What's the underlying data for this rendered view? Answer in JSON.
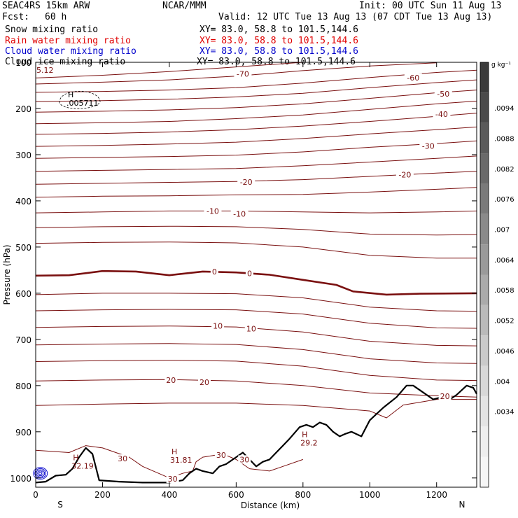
{
  "header": {
    "model": "SEAC4RS 15km ARW",
    "org": "NCAR/MMM",
    "init": "Init: 00 UTC Sun 11 Aug 13",
    "fcst_label": "Fcst:",
    "fcst_value": "60 h",
    "valid": "Valid: 12 UTC Tue 13 Aug 13 (07 CDT Tue 13 Aug 13)"
  },
  "fields": [
    {
      "name": "Snow mixing ratio",
      "xy": "XY=  83.0, 58.8 to 101.5,144.6",
      "color": "#000000"
    },
    {
      "name": "Rain water mixing ratio",
      "xy": "XY=  83.0, 58.8 to 101.5,144.6",
      "color": "#e00000"
    },
    {
      "name": "Cloud water mixing ratio",
      "xy": "XY=  83.0, 58.8 to 101.5,144.6",
      "color": "#0000cc"
    },
    {
      "name": "Cloud ice mixing ratio",
      "xy": "XY=  83.0, 58.8 to 101.5,144.6",
      "color": "#000000"
    }
  ],
  "chart_data": {
    "type": "line",
    "xlabel": "Distance (km)",
    "ylabel": "Pressure (hPa)",
    "xlim": [
      0,
      1320
    ],
    "ylim": [
      1020,
      100
    ],
    "x_ticks": [
      0,
      200,
      400,
      600,
      800,
      1000,
      1200
    ],
    "y_ticks": [
      100,
      200,
      300,
      400,
      500,
      600,
      700,
      800,
      900,
      1000
    ],
    "y_tick_labels": [
      "100",
      "200",
      "300",
      "400",
      "500",
      "600",
      "700",
      "800",
      "900",
      "1000"
    ],
    "x_start_label": "S",
    "x_end_label": "N",
    "contour_color": "#7a1010",
    "isotherms": [
      {
        "temp": -70,
        "points": [
          [
            0,
            134
          ],
          [
            200,
            128
          ],
          [
            400,
            120
          ],
          [
            600,
            110
          ],
          [
            800,
            100
          ]
        ]
      },
      {
        "temp": null,
        "points": [
          [
            0,
            147
          ],
          [
            200,
            143
          ],
          [
            400,
            138
          ],
          [
            600,
            130
          ],
          [
            800,
            118
          ],
          [
            1000,
            108
          ],
          [
            1200,
            101
          ]
        ]
      },
      {
        "temp": -60,
        "points": [
          [
            0,
            165
          ],
          [
            200,
            163
          ],
          [
            400,
            160
          ],
          [
            600,
            155
          ],
          [
            800,
            145
          ],
          [
            1000,
            133
          ],
          [
            1200,
            122
          ],
          [
            1320,
            117
          ]
        ]
      },
      {
        "temp": null,
        "points": [
          [
            0,
            185
          ],
          [
            200,
            183
          ],
          [
            400,
            180
          ],
          [
            600,
            175
          ],
          [
            800,
            167
          ],
          [
            1000,
            155
          ],
          [
            1200,
            144
          ],
          [
            1320,
            138
          ]
        ]
      },
      {
        "temp": -50,
        "points": [
          [
            0,
            208
          ],
          [
            200,
            206
          ],
          [
            400,
            203
          ],
          [
            600,
            198
          ],
          [
            800,
            190
          ],
          [
            1000,
            178
          ],
          [
            1200,
            166
          ],
          [
            1320,
            160
          ]
        ]
      },
      {
        "temp": null,
        "points": [
          [
            0,
            233
          ],
          [
            200,
            231
          ],
          [
            400,
            228
          ],
          [
            600,
            222
          ],
          [
            800,
            214
          ],
          [
            1000,
            202
          ],
          [
            1200,
            190
          ],
          [
            1320,
            184
          ]
        ]
      },
      {
        "temp": -40,
        "points": [
          [
            0,
            256
          ],
          [
            200,
            254
          ],
          [
            400,
            251
          ],
          [
            600,
            246
          ],
          [
            800,
            238
          ],
          [
            1000,
            228
          ],
          [
            1200,
            217
          ],
          [
            1320,
            210
          ]
        ]
      },
      {
        "temp": null,
        "points": [
          [
            0,
            282
          ],
          [
            200,
            280
          ],
          [
            400,
            277
          ],
          [
            600,
            273
          ],
          [
            800,
            265
          ],
          [
            1000,
            255
          ],
          [
            1200,
            246
          ],
          [
            1320,
            240
          ]
        ]
      },
      {
        "temp": -30,
        "points": [
          [
            0,
            308
          ],
          [
            200,
            306
          ],
          [
            400,
            304
          ],
          [
            600,
            301
          ],
          [
            800,
            294
          ],
          [
            1000,
            284
          ],
          [
            1200,
            276
          ],
          [
            1320,
            270
          ]
        ]
      },
      {
        "temp": null,
        "points": [
          [
            0,
            336
          ],
          [
            200,
            334
          ],
          [
            400,
            332
          ],
          [
            600,
            330
          ],
          [
            800,
            324
          ],
          [
            1000,
            316
          ],
          [
            1200,
            308
          ],
          [
            1320,
            303
          ]
        ]
      },
      {
        "temp": -20,
        "points": [
          [
            0,
            364
          ],
          [
            200,
            362
          ],
          [
            400,
            360
          ],
          [
            600,
            358
          ],
          [
            800,
            354
          ],
          [
            1000,
            347
          ],
          [
            1200,
            340
          ],
          [
            1320,
            336
          ]
        ]
      },
      {
        "temp": null,
        "points": [
          [
            0,
            392
          ],
          [
            200,
            390
          ],
          [
            400,
            389
          ],
          [
            600,
            387
          ],
          [
            800,
            386
          ],
          [
            1000,
            381
          ],
          [
            1200,
            375
          ],
          [
            1320,
            371
          ]
        ]
      },
      {
        "temp": -10,
        "points": [
          [
            0,
            426
          ],
          [
            200,
            424
          ],
          [
            400,
            422
          ],
          [
            600,
            422
          ],
          [
            800,
            424
          ],
          [
            1000,
            426
          ],
          [
            1200,
            424
          ],
          [
            1320,
            422
          ]
        ]
      },
      {
        "temp": null,
        "points": [
          [
            0,
            458
          ],
          [
            200,
            456
          ],
          [
            400,
            455
          ],
          [
            600,
            456
          ],
          [
            800,
            462
          ],
          [
            1000,
            472
          ],
          [
            1200,
            474
          ],
          [
            1320,
            473
          ]
        ]
      },
      {
        "temp": null,
        "points": [
          [
            0,
            492
          ],
          [
            200,
            490
          ],
          [
            400,
            489
          ],
          [
            600,
            491
          ],
          [
            800,
            500
          ],
          [
            1000,
            518
          ],
          [
            1200,
            524
          ],
          [
            1320,
            524
          ]
        ]
      },
      {
        "temp": 0,
        "bold": true,
        "points": [
          [
            0,
            562
          ],
          [
            100,
            561
          ],
          [
            200,
            552
          ],
          [
            300,
            553
          ],
          [
            400,
            561
          ],
          [
            500,
            553
          ],
          [
            600,
            555
          ],
          [
            700,
            560
          ],
          [
            800,
            571
          ],
          [
            900,
            582
          ],
          [
            950,
            596
          ],
          [
            1050,
            603
          ],
          [
            1150,
            601
          ],
          [
            1320,
            600
          ]
        ]
      },
      {
        "temp": null,
        "points": [
          [
            0,
            603
          ],
          [
            200,
            600
          ],
          [
            400,
            600
          ],
          [
            600,
            601
          ],
          [
            800,
            610
          ],
          [
            1000,
            630
          ],
          [
            1200,
            638
          ],
          [
            1320,
            639
          ]
        ]
      },
      {
        "temp": null,
        "points": [
          [
            0,
            638
          ],
          [
            200,
            636
          ],
          [
            400,
            635
          ],
          [
            600,
            636
          ],
          [
            800,
            645
          ],
          [
            1000,
            665
          ],
          [
            1200,
            675
          ],
          [
            1320,
            676
          ]
        ]
      },
      {
        "temp": 10,
        "points": [
          [
            0,
            674
          ],
          [
            200,
            672
          ],
          [
            400,
            671
          ],
          [
            600,
            673
          ],
          [
            800,
            684
          ],
          [
            1000,
            704
          ],
          [
            1200,
            713
          ],
          [
            1320,
            714
          ]
        ]
      },
      {
        "temp": null,
        "points": [
          [
            0,
            712
          ],
          [
            200,
            710
          ],
          [
            400,
            709
          ],
          [
            600,
            711
          ],
          [
            800,
            722
          ],
          [
            1000,
            742
          ],
          [
            1200,
            751
          ],
          [
            1320,
            752
          ]
        ]
      },
      {
        "temp": null,
        "points": [
          [
            0,
            748
          ],
          [
            200,
            746
          ],
          [
            400,
            745
          ],
          [
            600,
            747
          ],
          [
            800,
            758
          ],
          [
            1000,
            778
          ],
          [
            1200,
            788
          ],
          [
            1320,
            789
          ]
        ]
      },
      {
        "temp": 20,
        "points": [
          [
            0,
            790
          ],
          [
            200,
            788
          ],
          [
            400,
            787
          ],
          [
            600,
            790
          ],
          [
            800,
            800
          ],
          [
            1000,
            816
          ],
          [
            1200,
            822
          ],
          [
            1320,
            825
          ]
        ]
      },
      {
        "temp": null,
        "points": [
          [
            0,
            843
          ],
          [
            200,
            840
          ],
          [
            400,
            838
          ],
          [
            600,
            838
          ],
          [
            800,
            843
          ],
          [
            1000,
            855
          ],
          [
            1050,
            870
          ],
          [
            1100,
            842
          ],
          [
            1200,
            830
          ],
          [
            1320,
            830
          ]
        ]
      },
      {
        "temp": 30,
        "points": [
          [
            0,
            940
          ],
          [
            100,
            945
          ],
          [
            150,
            930
          ],
          [
            200,
            935
          ],
          [
            280,
            955
          ],
          [
            320,
            975
          ],
          [
            400,
            1000
          ],
          [
            440,
            990
          ],
          [
            470,
            985
          ],
          [
            480,
            965
          ],
          [
            500,
            955
          ],
          [
            560,
            948
          ],
          [
            600,
            960
          ],
          [
            640,
            980
          ],
          [
            700,
            985
          ],
          [
            740,
            975
          ],
          [
            800,
            960
          ]
        ]
      }
    ],
    "isotherm_labels": [
      {
        "x": 620,
        "p": 125,
        "text": "-70"
      },
      {
        "x": 1130,
        "p": 133,
        "text": "-60"
      },
      {
        "x": 1220,
        "p": 168,
        "text": "-50"
      },
      {
        "x": 1215,
        "p": 212,
        "text": "-40"
      },
      {
        "x": 1175,
        "p": 281,
        "text": "-30"
      },
      {
        "x": 630,
        "p": 359,
        "text": "-20"
      },
      {
        "x": 1105,
        "p": 343,
        "text": "-20"
      },
      {
        "x": 530,
        "p": 422,
        "text": "-10"
      },
      {
        "x": 610,
        "p": 428,
        "text": "-10"
      },
      {
        "x": 535,
        "p": 553,
        "text": "0"
      },
      {
        "x": 640,
        "p": 557,
        "text": "0"
      },
      {
        "x": 545,
        "p": 671,
        "text": "10"
      },
      {
        "x": 645,
        "p": 677,
        "text": "10"
      },
      {
        "x": 405,
        "p": 788,
        "text": "20"
      },
      {
        "x": 505,
        "p": 793,
        "text": "20"
      },
      {
        "x": 1225,
        "p": 823,
        "text": "20"
      },
      {
        "x": 260,
        "p": 958,
        "text": "30"
      },
      {
        "x": 555,
        "p": 950,
        "text": "30"
      },
      {
        "x": 410,
        "p": 1002,
        "text": "30"
      },
      {
        "x": 625,
        "p": 960,
        "text": "30"
      }
    ],
    "highs": [
      {
        "x": 130,
        "p": 182,
        "mark": "H",
        "value": ".005711"
      },
      {
        "x": 145,
        "p": 968,
        "mark": "H",
        "value": "32.19"
      },
      {
        "x": 440,
        "p": 955,
        "mark": "H",
        "value": "31.81"
      },
      {
        "x": 830,
        "p": 918,
        "mark": "H",
        "value": "29.2"
      }
    ],
    "edge_label": {
      "x": 0,
      "p": 168,
      "text": "5.12"
    },
    "terrain": [
      [
        0,
        1010
      ],
      [
        30,
        1008
      ],
      [
        60,
        995
      ],
      [
        90,
        993
      ],
      [
        110,
        980
      ],
      [
        130,
        955
      ],
      [
        150,
        935
      ],
      [
        170,
        948
      ],
      [
        190,
        1005
      ],
      [
        250,
        1008
      ],
      [
        320,
        1010
      ],
      [
        400,
        1010
      ],
      [
        440,
        1005
      ],
      [
        460,
        990
      ],
      [
        480,
        980
      ],
      [
        500,
        985
      ],
      [
        530,
        990
      ],
      [
        550,
        975
      ],
      [
        570,
        970
      ],
      [
        600,
        955
      ],
      [
        620,
        945
      ],
      [
        640,
        960
      ],
      [
        660,
        975
      ],
      [
        680,
        965
      ],
      [
        700,
        960
      ],
      [
        720,
        945
      ],
      [
        740,
        930
      ],
      [
        760,
        915
      ],
      [
        790,
        890
      ],
      [
        810,
        885
      ],
      [
        830,
        890
      ],
      [
        850,
        880
      ],
      [
        870,
        885
      ],
      [
        890,
        900
      ],
      [
        910,
        910
      ],
      [
        925,
        905
      ],
      [
        945,
        900
      ],
      [
        960,
        905
      ],
      [
        975,
        910
      ],
      [
        1000,
        875
      ],
      [
        1040,
        848
      ],
      [
        1080,
        825
      ],
      [
        1110,
        800
      ],
      [
        1130,
        800
      ],
      [
        1160,
        815
      ],
      [
        1190,
        830
      ],
      [
        1215,
        825
      ],
      [
        1240,
        830
      ],
      [
        1260,
        820
      ],
      [
        1290,
        800
      ],
      [
        1310,
        805
      ],
      [
        1320,
        818
      ]
    ],
    "cloud_water_center": {
      "x": 14,
      "p": 990
    },
    "colorbar": {
      "unit": "g kg⁻¹",
      "ticks": [
        ".0094",
        ".0088",
        ".0082",
        ".0076",
        ".007",
        ".0064",
        ".0058",
        ".0052",
        ".0046",
        ".004",
        ".0034"
      ],
      "shades": [
        "#3a3a3a",
        "#4a4a4a",
        "#5a5a5a",
        "#6a6a6a",
        "#7a7a7a",
        "#8a8a8a",
        "#9a9a9a",
        "#aaaaaa",
        "#bababa",
        "#cacaca",
        "#d8d8d8",
        "#e4e4e4",
        "#eeeeee",
        "#f6f6f6"
      ]
    }
  }
}
